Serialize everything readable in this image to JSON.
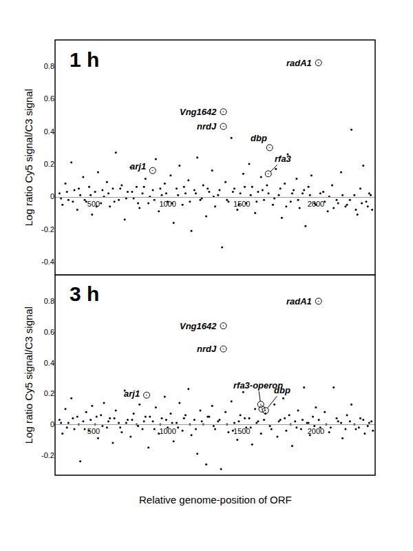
{
  "chart_data": [
    {
      "type": "scatter",
      "title": "1 h",
      "y_label": "Log ratio Cy5 signal/C3 signal",
      "xlim": [
        240,
        2400
      ],
      "xticks": [
        500,
        1000,
        1500,
        2000
      ],
      "ylim": [
        -0.48,
        0.96
      ],
      "yticks": [
        -0.4,
        -0.2,
        0,
        0.2,
        0.4,
        0.6,
        0.8
      ],
      "grid": false,
      "color": "#000000",
      "marker": "circle",
      "x": [
        270,
        290,
        310,
        330,
        350,
        370,
        390,
        410,
        430,
        450,
        470,
        490,
        510,
        530,
        550,
        570,
        590,
        610,
        630,
        650,
        670,
        690,
        710,
        730,
        750,
        770,
        790,
        810,
        830,
        850,
        870,
        900,
        920,
        940,
        960,
        980,
        1000,
        1020,
        1040,
        1060,
        1080,
        1100,
        1120,
        1140,
        1160,
        1180,
        1200,
        1220,
        1240,
        1260,
        1280,
        1300,
        1320,
        1340,
        1367,
        1390,
        1410,
        1430,
        1450,
        1470,
        1490,
        1510,
        1530,
        1550,
        1570,
        1590,
        1610,
        1630,
        1650,
        1670,
        1710,
        1730,
        1750,
        1770,
        1790,
        1810,
        1830,
        1850,
        1870,
        1890,
        1910,
        1930,
        1950,
        1970,
        1990,
        2050,
        2080,
        2110,
        2140,
        2170,
        2200,
        2240,
        2260,
        2280,
        2300,
        2320,
        2340,
        2360,
        2380,
        280,
        320,
        360,
        400,
        440,
        480,
        520,
        560,
        600,
        640,
        680,
        720,
        760,
        800,
        840,
        880,
        910,
        950,
        990,
        1030,
        1070,
        1110,
        1150,
        1190,
        1230,
        1270,
        1310,
        1350,
        1400,
        1440,
        1480,
        1520,
        1560,
        1600,
        1640,
        1680,
        1720,
        1760,
        1800,
        1840,
        1880,
        1920,
        1960,
        2000,
        2030,
        2060,
        2090,
        2120,
        2150,
        2180,
        2210,
        2230,
        2270,
        2310,
        2350,
        2370
      ],
      "values": [
        0.02,
        -0.05,
        0.08,
        -0.02,
        0.21,
        0.04,
        -0.08,
        0.01,
        0.12,
        -0.03,
        0.06,
        -0.11,
        0.03,
        0.15,
        -0.04,
        0.0,
        0.09,
        -0.06,
        0.05,
        0.27,
        -0.02,
        0.07,
        -0.14,
        0.03,
        0.18,
        -0.01,
        0.06,
        -0.07,
        0.02,
        0.11,
        -0.04,
        0.04,
        0.23,
        -0.09,
        0.01,
        0.08,
        -0.03,
        0.13,
        -0.16,
        0.05,
        0.19,
        -0.05,
        0.02,
        0.1,
        -0.21,
        0.04,
        0.24,
        -0.02,
        0.07,
        -0.12,
        0.03,
        0.16,
        -0.06,
        0.01,
        -0.31,
        0.09,
        -0.03,
        0.36,
        0.05,
        -0.08,
        0.02,
        0.14,
        -0.04,
        0.2,
        0.06,
        -0.1,
        0.03,
        0.12,
        -0.02,
        0.07,
        -0.05,
        0.17,
        0.01,
        -0.13,
        0.08,
        0.26,
        -0.03,
        0.04,
        0.11,
        -0.07,
        0.02,
        -0.18,
        0.06,
        0.13,
        -0.04,
        0.03,
        -0.09,
        0.07,
        -0.02,
        0.15,
        -0.06,
        0.41,
        0.01,
        -0.11,
        0.05,
        0.19,
        -0.03,
        0.02,
        -0.08,
        -0.01,
        0.03,
        -0.03,
        0.05,
        -0.02,
        0.01,
        -0.06,
        0.04,
        0.02,
        -0.03,
        0.05,
        -0.01,
        0.03,
        -0.04,
        0.06,
        0.0,
        -0.02,
        0.05,
        0.02,
        -0.04,
        0.01,
        0.06,
        -0.03,
        0.02,
        -0.01,
        0.05,
        0.0,
        0.04,
        -0.02,
        0.03,
        -0.05,
        0.06,
        0.01,
        -0.03,
        0.04,
        0.02,
        -0.01,
        0.05,
        -0.06,
        0.02,
        -0.02,
        0.04,
        0.01,
        -0.05,
        0.02,
        -0.03,
        0.0,
        -0.07,
        -0.04,
        0.01,
        -0.05,
        -0.02,
        -0.08,
        -0.04,
        -0.06,
        0.01
      ],
      "highlight": {
        "marker": "circle-open-dot",
        "color": "#000000",
        "labels": [
          "arj1",
          "Vng1642",
          "nrdJ",
          "dbp",
          "rfa3",
          "radA1"
        ],
        "x": [
          899,
          1376,
          1376,
          1688,
          1679,
          2018
        ],
        "values": [
          0.16,
          0.52,
          0.43,
          0.3,
          0.14,
          0.82
        ]
      }
    },
    {
      "type": "scatter",
      "title": "3 h",
      "y_label": "Log ratio Cy5 signal/C3 signal",
      "x_label": "Relative genome-position of ORF",
      "xlim": [
        240,
        2400
      ],
      "xticks": [
        500,
        1000,
        1500,
        2000
      ],
      "ylim": [
        -0.33,
        0.97
      ],
      "yticks": [
        -0.2,
        0,
        0.2,
        0.4,
        0.6,
        0.8
      ],
      "grid": false,
      "color": "#000000",
      "marker": "circle",
      "x": [
        270,
        290,
        310,
        330,
        350,
        370,
        390,
        410,
        430,
        450,
        470,
        490,
        510,
        530,
        550,
        570,
        590,
        610,
        630,
        650,
        670,
        690,
        710,
        730,
        750,
        770,
        790,
        810,
        830,
        850,
        870,
        900,
        920,
        940,
        960,
        980,
        1000,
        1020,
        1040,
        1060,
        1080,
        1100,
        1120,
        1140,
        1160,
        1180,
        1200,
        1220,
        1240,
        1260,
        1280,
        1300,
        1320,
        1340,
        1360,
        1390,
        1410,
        1430,
        1450,
        1470,
        1490,
        1510,
        1530,
        1550,
        1570,
        1590,
        1610,
        1630,
        1660,
        1690,
        1720,
        1740,
        1760,
        1780,
        1800,
        1820,
        1840,
        1860,
        1880,
        1900,
        1920,
        1940,
        1960,
        1980,
        2000,
        2030,
        2060,
        2090,
        2120,
        2150,
        2180,
        2210,
        2240,
        2270,
        2300,
        2330,
        2360,
        2385,
        280,
        320,
        360,
        400,
        440,
        480,
        520,
        560,
        600,
        640,
        680,
        720,
        760,
        800,
        840,
        880,
        910,
        950,
        990,
        1030,
        1070,
        1110,
        1150,
        1190,
        1230,
        1270,
        1310,
        1350,
        1400,
        1440,
        1480,
        1520,
        1560,
        1600,
        1650,
        1700,
        1750,
        1790,
        1830,
        1870,
        1910,
        1950,
        1990,
        2020,
        2070,
        2100,
        2140,
        2170,
        2200,
        2230,
        2260,
        2290,
        2320,
        2350,
        2375
      ],
      "values": [
        0.03,
        -0.06,
        0.1,
        0.01,
        0.17,
        -0.03,
        0.05,
        -0.24,
        0.02,
        0.08,
        -0.04,
        0.12,
        0.0,
        -0.09,
        0.06,
        0.14,
        -0.02,
        0.04,
        -0.12,
        0.09,
        0.01,
        -0.05,
        0.22,
        0.03,
        -0.08,
        0.07,
        0.0,
        0.13,
        -0.03,
        0.05,
        -0.15,
        0.02,
        0.11,
        -0.06,
        0.04,
        0.18,
        -0.02,
        0.07,
        -0.11,
        0.01,
        0.14,
        -0.04,
        0.06,
        0.23,
        -0.07,
        0.03,
        -0.19,
        0.09,
        0.0,
        -0.26,
        0.05,
        0.12,
        -0.03,
        0.02,
        -0.29,
        0.08,
        -0.05,
        0.15,
        0.01,
        -0.1,
        0.06,
        0.21,
        -0.02,
        0.04,
        -0.13,
        0.1,
        0.02,
        -0.06,
        0.07,
        -0.01,
        0.13,
        -0.08,
        0.03,
        0.17,
        -0.04,
        0.06,
        -0.14,
        0.02,
        0.09,
        -0.03,
        0.24,
        0.01,
        -0.07,
        0.05,
        0.11,
        -0.02,
        0.08,
        -0.05,
        0.24,
        0.02,
        -0.09,
        0.06,
        0.13,
        -0.03,
        0.04,
        -0.06,
        0.01,
        -0.04,
        0.01,
        -0.02,
        0.04,
        0.0,
        -0.03,
        0.03,
        0.05,
        -0.01,
        0.02,
        0.04,
        -0.02,
        0.01,
        0.03,
        -0.01,
        0.02,
        0.05,
        -0.03,
        0.0,
        0.03,
        0.01,
        -0.02,
        0.04,
        0.0,
        -0.03,
        0.02,
        0.05,
        -0.01,
        0.03,
        0.0,
        -0.04,
        0.02,
        0.04,
        -0.02,
        0.01,
        0.03,
        -0.03,
        0.02,
        0.04,
        0.0,
        -0.02,
        0.03,
        0.01,
        -0.01,
        0.03,
        0.0,
        -0.02,
        0.04,
        0.01,
        -0.03,
        0.02,
        0.0,
        -0.02,
        0.03,
        -0.01,
        0.02
      ],
      "highlight": {
        "marker": "circle-open-dot",
        "color": "#000000",
        "labels": [
          "arj1",
          "Vng1642",
          "nrdJ",
          "rfa3-operon",
          null,
          "dbp",
          "radA1"
        ],
        "x": [
          858,
          1376,
          1376,
          1628,
          1636,
          1660,
          2018
        ],
        "values": [
          0.19,
          0.64,
          0.49,
          0.13,
          0.1,
          0.09,
          0.8
        ]
      }
    }
  ]
}
